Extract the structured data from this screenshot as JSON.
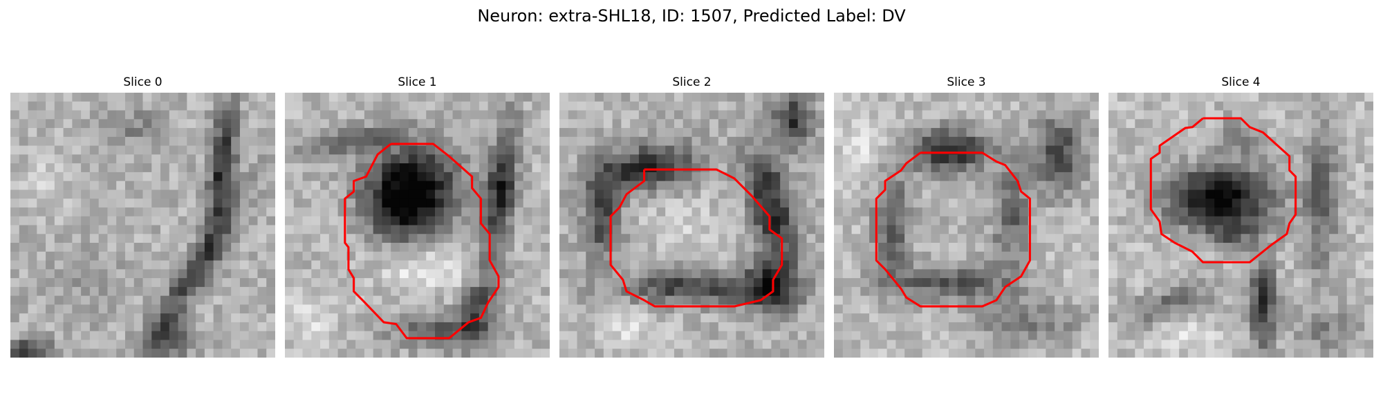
{
  "figure": {
    "title": "Neuron: extra-SHL18, ID: 1507, Predicted Label: DV",
    "contour_color": "#ff0000",
    "slices": [
      {
        "title": "Slice 0",
        "has_contour": false
      },
      {
        "title": "Slice 1",
        "has_contour": true
      },
      {
        "title": "Slice 2",
        "has_contour": true
      },
      {
        "title": "Slice 3",
        "has_contour": true
      },
      {
        "title": "Slice 4",
        "has_contour": true
      }
    ]
  }
}
